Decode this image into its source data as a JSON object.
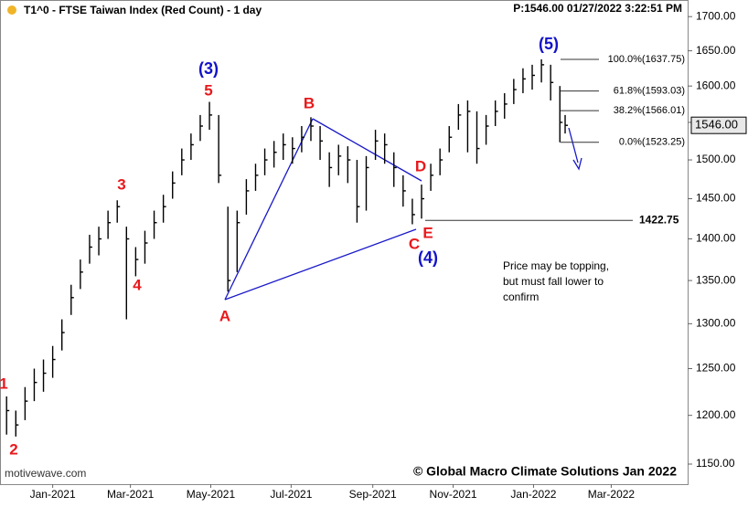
{
  "chart_data": {
    "type": "ohlc",
    "title": "T1^0 - FTSE Taiwan Index (Red Count) - 1 day",
    "subtitle": "P:1546.00  01/27/2022 3:22:51 PM",
    "log_y": true,
    "color": "#000000",
    "x": [
      -35,
      -28,
      -21,
      -14,
      -7,
      0,
      7,
      14,
      21,
      28,
      35,
      42,
      49,
      56,
      63,
      70,
      77,
      84,
      91,
      98,
      105,
      112,
      119,
      126,
      133,
      140,
      147,
      154,
      161,
      168,
      175,
      182,
      189,
      196,
      203,
      210,
      217,
      224,
      231,
      238,
      245,
      252,
      259,
      266,
      273,
      280,
      287,
      294,
      301,
      308,
      315,
      322,
      329,
      336,
      343,
      350,
      357,
      364,
      371,
      378,
      385,
      389
    ],
    "high": [
      1220,
      1205,
      1230,
      1250,
      1260,
      1275,
      1305,
      1345,
      1375,
      1405,
      1415,
      1435,
      1448,
      1415,
      1390,
      1410,
      1435,
      1455,
      1485,
      1515,
      1535,
      1560,
      1578,
      1560,
      1440,
      1435,
      1475,
      1495,
      1515,
      1525,
      1535,
      1530,
      1545,
      1557,
      1545,
      1510,
      1520,
      1518,
      1500,
      1505,
      1540,
      1535,
      1510,
      1480,
      1450,
      1468,
      1495,
      1515,
      1545,
      1575,
      1580,
      1565,
      1560,
      1580,
      1590,
      1610,
      1625,
      1630,
      1637.75,
      1630,
      1600,
      1560
    ],
    "low": [
      1180,
      1178,
      1195,
      1215,
      1225,
      1240,
      1270,
      1310,
      1340,
      1370,
      1380,
      1400,
      1420,
      1305,
      1355,
      1370,
      1400,
      1420,
      1450,
      1480,
      1500,
      1525,
      1540,
      1470,
      1337,
      1360,
      1430,
      1460,
      1480,
      1490,
      1500,
      1495,
      1510,
      1525,
      1500,
      1465,
      1480,
      1470,
      1420,
      1435,
      1500,
      1495,
      1465,
      1440,
      1418,
      1425,
      1460,
      1480,
      1510,
      1540,
      1510,
      1495,
      1520,
      1545,
      1555,
      1575,
      1590,
      1595,
      1605,
      1580,
      1523.25,
      1535
    ],
    "close": [
      1205,
      1190,
      1215,
      1235,
      1245,
      1260,
      1290,
      1330,
      1360,
      1390,
      1400,
      1420,
      1440,
      1400,
      1375,
      1395,
      1420,
      1440,
      1470,
      1500,
      1520,
      1545,
      1560,
      1480,
      1350,
      1420,
      1460,
      1480,
      1500,
      1510,
      1520,
      1515,
      1530,
      1545,
      1525,
      1490,
      1505,
      1500,
      1440,
      1490,
      1525,
      1520,
      1490,
      1460,
      1430,
      1450,
      1480,
      1500,
      1530,
      1560,
      1565,
      1515,
      1545,
      1565,
      1575,
      1595,
      1610,
      1615,
      1630,
      1605,
      1550,
      1546
    ],
    "last_price_label": "1546.00",
    "xlim": [
      -40,
      482
    ],
    "xticks": [
      {
        "value": 0,
        "label": "Jan-2021"
      },
      {
        "value": 59,
        "label": "Mar-2021"
      },
      {
        "value": 120,
        "label": "May-2021"
      },
      {
        "value": 181,
        "label": "Jul-2021"
      },
      {
        "value": 243,
        "label": "Sep-2021"
      },
      {
        "value": 304,
        "label": "Nov-2021"
      },
      {
        "value": 365,
        "label": "Jan-2022"
      },
      {
        "value": 424,
        "label": "Mar-2022"
      }
    ],
    "ylim": [
      1130,
      1718
    ],
    "yticks": [
      {
        "value": 1150,
        "label": "1150.00"
      },
      {
        "value": 1200,
        "label": "1200.00"
      },
      {
        "value": 1250,
        "label": "1250.00"
      },
      {
        "value": 1300,
        "label": "1300.00"
      },
      {
        "value": 1350,
        "label": "1350.00"
      },
      {
        "value": 1400,
        "label": "1400.00"
      },
      {
        "value": 1450,
        "label": "1450.00"
      },
      {
        "value": 1500,
        "label": "1500.00"
      },
      {
        "value": 1550,
        "label": "1550.00"
      },
      {
        "value": 1600,
        "label": "1600.00"
      },
      {
        "value": 1650,
        "label": "1650.00"
      },
      {
        "value": 1700,
        "label": "1700.00"
      }
    ],
    "fib_levels": [
      {
        "value": 1637.75,
        "label": "100.0%(1637.75)"
      },
      {
        "value": 1593.03,
        "label": "61.8%(1593.03)"
      },
      {
        "value": 1566.01,
        "label": "38.2%(1566.01)"
      },
      {
        "value": 1523.25,
        "label": "0.0%(1523.25)"
      }
    ],
    "support": {
      "value": 1422.75,
      "label": "1422.75"
    },
    "wave_labels": [
      "1",
      "2",
      "3",
      "4",
      "(3)",
      "5",
      "A",
      "B",
      "C",
      "(4)",
      "D",
      "E",
      "(5)"
    ],
    "note": [
      "Price may be topping,",
      "but must fall lower to",
      "confirm"
    ],
    "watermark": "motivewave.com",
    "copyright": "© Global Macro Climate Solutions Jan 2022"
  }
}
